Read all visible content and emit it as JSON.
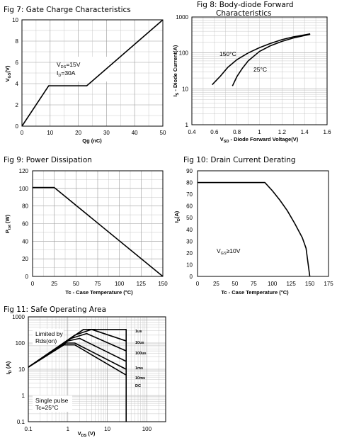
{
  "chart_data": [
    {
      "type": "line",
      "title": "Fig 7: Gate Charge Characteristics",
      "xlabel": "Qg (nC)",
      "ylabel": "V",
      "ylabel_sub": "GS",
      "ylabel_unit": "(V)",
      "x_ticks": [
        "0",
        "10",
        "20",
        "30",
        "40",
        "50"
      ],
      "y_ticks": [
        "0",
        "2",
        "4",
        "6",
        "8",
        "10"
      ],
      "xlim": [
        0,
        50
      ],
      "ylim": [
        0,
        10
      ],
      "grid": true,
      "annotation": {
        "line1_main": "V",
        "line1_sub": "DS",
        "line1_val": "=15V",
        "line2_main": "I",
        "line2_sub": "D",
        "line2_val": "=30A"
      },
      "series": [
        {
          "x": [
            0,
            9.5,
            23,
            50
          ],
          "y": [
            0,
            3.8,
            3.8,
            10
          ]
        }
      ]
    },
    {
      "type": "line",
      "title": [
        "Fig 8: Body-diode Forward",
        "Characteristics"
      ],
      "xlabel_main": "V",
      "xlabel_sub": "SD",
      "xlabel_rest": " - Diode Forward Voltage(V)",
      "ylabel_main": "I",
      "ylabel_sub": "S",
      "ylabel_rest": " - Diode Current(A)",
      "x_ticks": [
        "0.4",
        "0.6",
        "0.8",
        "1",
        "1.2",
        "1.4",
        "1.6"
      ],
      "y_ticks": [
        "1",
        "10",
        "100",
        "1000"
      ],
      "xlim": [
        0.4,
        1.6
      ],
      "ylim": [
        1,
        1000
      ],
      "y_scale": "log",
      "grid": true,
      "series": [
        {
          "name": "150°C",
          "x": [
            0.58,
            0.65,
            0.72,
            0.8,
            0.9,
            1.0,
            1.1,
            1.2,
            1.3,
            1.45
          ],
          "y": [
            13,
            22,
            40,
            65,
            100,
            140,
            185,
            235,
            280,
            340
          ]
        },
        {
          "name": "25°C",
          "x": [
            0.76,
            0.8,
            0.85,
            0.9,
            1.0,
            1.1,
            1.2,
            1.3,
            1.45
          ],
          "y": [
            12,
            22,
            38,
            60,
            110,
            160,
            210,
            260,
            330
          ]
        }
      ],
      "series_labels": [
        "150°C",
        "25°C"
      ]
    },
    {
      "type": "line",
      "title": "Fig 9: Power Dissipation",
      "xlabel": "Tc - Case Temperature (°C)",
      "ylabel_main": "P",
      "ylabel_sub": "tot",
      "ylabel_rest": " (W)",
      "x_ticks": [
        "0",
        "25",
        "50",
        "75",
        "100",
        "125",
        "150"
      ],
      "y_ticks": [
        "0",
        "20",
        "40",
        "60",
        "80",
        "100",
        "120"
      ],
      "xlim": [
        0,
        150
      ],
      "ylim": [
        0,
        120
      ],
      "grid": true,
      "series": [
        {
          "x": [
            0,
            25,
            150
          ],
          "y": [
            101,
            101,
            0
          ]
        }
      ]
    },
    {
      "type": "line",
      "title": "Fig 10: Drain Current Derating",
      "xlabel": "Tc - Case Temperature (°C)",
      "ylabel_main": "I",
      "ylabel_sub": "D",
      "ylabel_rest": "(A)",
      "x_ticks": [
        "0",
        "25",
        "50",
        "75",
        "100",
        "125",
        "150",
        "175"
      ],
      "y_ticks": [
        "0",
        "10",
        "20",
        "30",
        "40",
        "50",
        "60",
        "70",
        "80",
        "90"
      ],
      "xlim": [
        0,
        175
      ],
      "ylim": [
        0,
        90
      ],
      "grid": false,
      "annotation": {
        "main": "V",
        "sub": "GS",
        "val": "≥10V"
      },
      "series": [
        {
          "x": [
            0,
            90,
            100,
            110,
            120,
            130,
            140,
            145,
            150
          ],
          "y": [
            80,
            80,
            73,
            65,
            56,
            45,
            33,
            24,
            0
          ]
        }
      ]
    },
    {
      "type": "line",
      "title": "Fig 11: Safe Operating Area",
      "xlabel_main": "V",
      "xlabel_sub": "DS",
      "xlabel_rest": " (V)",
      "ylabel_main": "I",
      "ylabel_sub": "D",
      "ylabel_rest": " (A)",
      "x_ticks": [
        "0.1",
        "1",
        "10",
        "100"
      ],
      "y_ticks": [
        "0.1",
        "1",
        "10",
        "100",
        "1000"
      ],
      "xlim": [
        0.1,
        300
      ],
      "ylim": [
        0.1,
        1000
      ],
      "x_scale": "log",
      "y_scale": "log",
      "grid": true,
      "annotations": [
        "Limited by",
        "Rds(on)",
        "Single pulse",
        "Tc=25°C"
      ],
      "series": [
        {
          "name": "1us",
          "x": [
            0.1,
            2.5,
            30,
            30
          ],
          "y": [
            12,
            330,
            330,
            0.1
          ]
        },
        {
          "name": "10us",
          "x": [
            0.1,
            1.5,
            4,
            30
          ],
          "y": [
            12,
            200,
            330,
            120
          ]
        },
        {
          "name": "100us",
          "x": [
            0.1,
            1.2,
            3,
            30
          ],
          "y": [
            12,
            150,
            230,
            50
          ]
        },
        {
          "name": "1ms",
          "x": [
            0.1,
            1.0,
            2,
            30
          ],
          "y": [
            12,
            120,
            150,
            20
          ]
        },
        {
          "name": "10ms",
          "x": [
            0.1,
            0.9,
            1.5,
            30
          ],
          "y": [
            12,
            100,
            100,
            10
          ]
        },
        {
          "name": "DC",
          "x": [
            0.1,
            0.8,
            1.5,
            30
          ],
          "y": [
            12,
            85,
            85,
            6
          ]
        }
      ],
      "series_labels": [
        "1us",
        "10us",
        "100us",
        "1ms",
        "10ms",
        "DC"
      ]
    }
  ]
}
